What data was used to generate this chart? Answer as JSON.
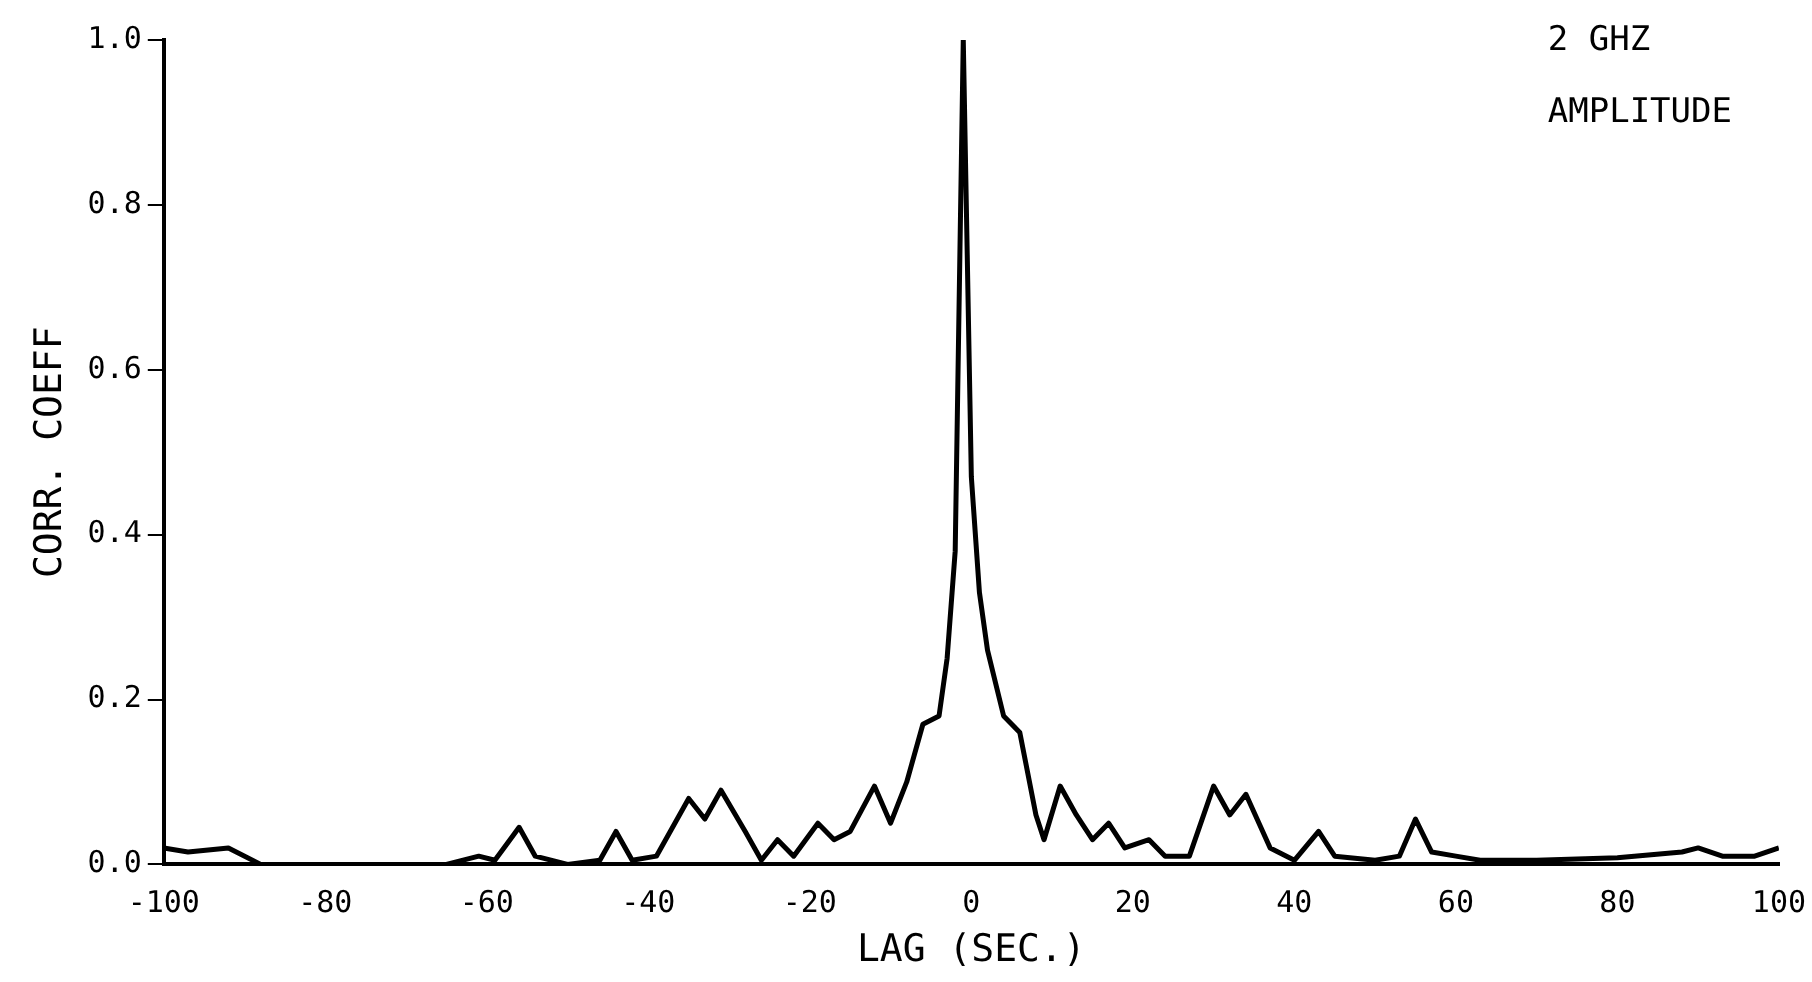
{
  "chart_data": {
    "type": "line",
    "xlabel": "LAG (SEC.)",
    "ylabel": "CORR. COEFF",
    "annotations": [
      "2 GHZ",
      "AMPLITUDE"
    ],
    "x": [
      -100,
      -97,
      -92,
      -88,
      -80,
      -65,
      -61,
      -59,
      -56,
      -54,
      -50,
      -46,
      -44,
      -42,
      -39,
      -35,
      -33,
      -31,
      -28,
      -26,
      -24,
      -22,
      -19,
      -17,
      -15,
      -12,
      -10,
      -8,
      -6,
      -4,
      -3,
      -2,
      -1,
      0,
      1,
      2,
      4,
      6,
      8,
      9,
      11,
      13,
      15,
      17,
      19,
      22,
      24,
      27,
      30,
      32,
      34,
      37,
      40,
      43,
      45,
      50,
      53,
      55,
      57,
      60,
      63,
      70,
      80,
      88,
      90,
      93,
      97,
      100
    ],
    "series": [
      {
        "color": "#000000",
        "values": [
          0.02,
          0.015,
          0.02,
          0.0,
          0.0,
          0.0,
          0.01,
          0.005,
          0.045,
          0.01,
          0.0,
          0.005,
          0.04,
          0.005,
          0.01,
          0.08,
          0.055,
          0.09,
          0.04,
          0.005,
          0.03,
          0.01,
          0.05,
          0.03,
          0.04,
          0.095,
          0.05,
          0.1,
          0.17,
          0.18,
          0.25,
          0.38,
          1.0,
          0.47,
          0.33,
          0.26,
          0.18,
          0.16,
          0.06,
          0.03,
          0.095,
          0.06,
          0.03,
          0.05,
          0.02,
          0.03,
          0.01,
          0.01,
          0.095,
          0.06,
          0.085,
          0.02,
          0.005,
          0.04,
          0.01,
          0.005,
          0.01,
          0.055,
          0.015,
          0.01,
          0.005,
          0.005,
          0.008,
          0.015,
          0.02,
          0.01,
          0.01,
          0.02
        ]
      }
    ],
    "xlim": [
      -100,
      100
    ],
    "xticks": [
      -100,
      -80,
      -60,
      -40,
      -20,
      0,
      20,
      40,
      60,
      80,
      100
    ],
    "ylim": [
      0,
      1
    ],
    "yticks": [
      {
        "value": 0,
        "label": "0.0"
      },
      0.2,
      0.4,
      0.6,
      0.8,
      {
        "value": 1,
        "label": "1.0"
      }
    ],
    "grid": false,
    "legend": false,
    "marker": "none",
    "line_style": "solid"
  }
}
